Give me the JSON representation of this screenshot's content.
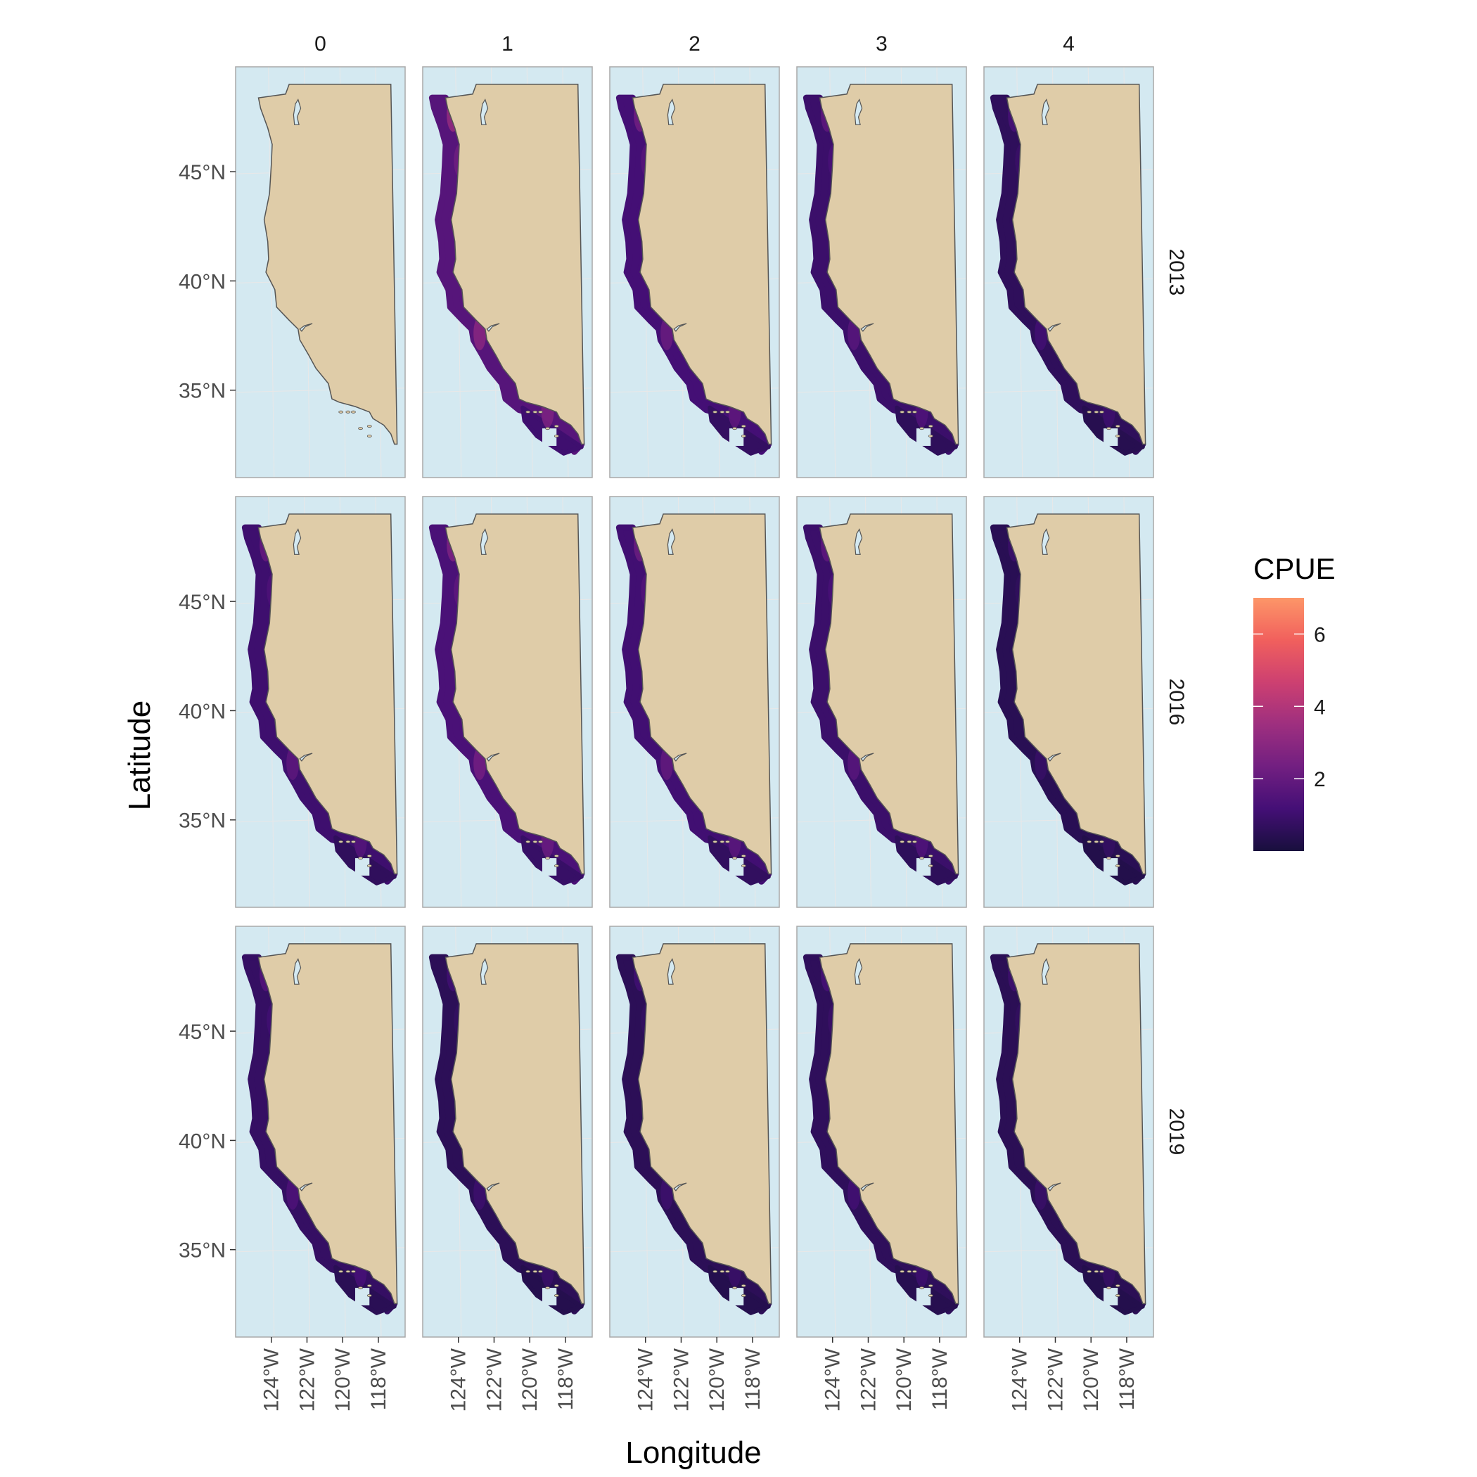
{
  "chart_data": {
    "type": "map",
    "facet_columns": [
      "0",
      "1",
      "2",
      "3",
      "4"
    ],
    "facet_rows": [
      "2013",
      "2016",
      "2019"
    ],
    "xlabel": "Longitude",
    "ylabel": "Latitude",
    "x_ticks": [
      "124°W",
      "122°W",
      "120°W",
      "118°W"
    ],
    "x_tick_values": [
      -124,
      -122,
      -120,
      -118
    ],
    "y_ticks": [
      "45°N",
      "40°N",
      "35°N"
    ],
    "y_tick_values": [
      45,
      40,
      35
    ],
    "xlim": [
      -126,
      -116.5
    ],
    "ylim": [
      31,
      49.8
    ],
    "legend": {
      "title": "CPUE",
      "breaks": [
        "6",
        "4",
        "2"
      ],
      "break_values": [
        6,
        4,
        2
      ],
      "range": [
        0,
        7
      ],
      "position": "right",
      "colors": [
        "#180f3d",
        "#440f76",
        "#721f81",
        "#9e2f7f",
        "#cd4071",
        "#f1605d",
        "#fd9668"
      ]
    },
    "colors": {
      "ocean": "#d4e9f1",
      "land": "#dfcca8",
      "coast": "#555555",
      "panel_border": "#a9a9a9"
    },
    "facet_intensity": [
      [
        0.0,
        0.42,
        0.3,
        0.24,
        0.16
      ],
      [
        0.26,
        0.34,
        0.28,
        0.24,
        0.12
      ],
      [
        0.2,
        0.14,
        0.14,
        0.16,
        0.13
      ]
    ]
  }
}
